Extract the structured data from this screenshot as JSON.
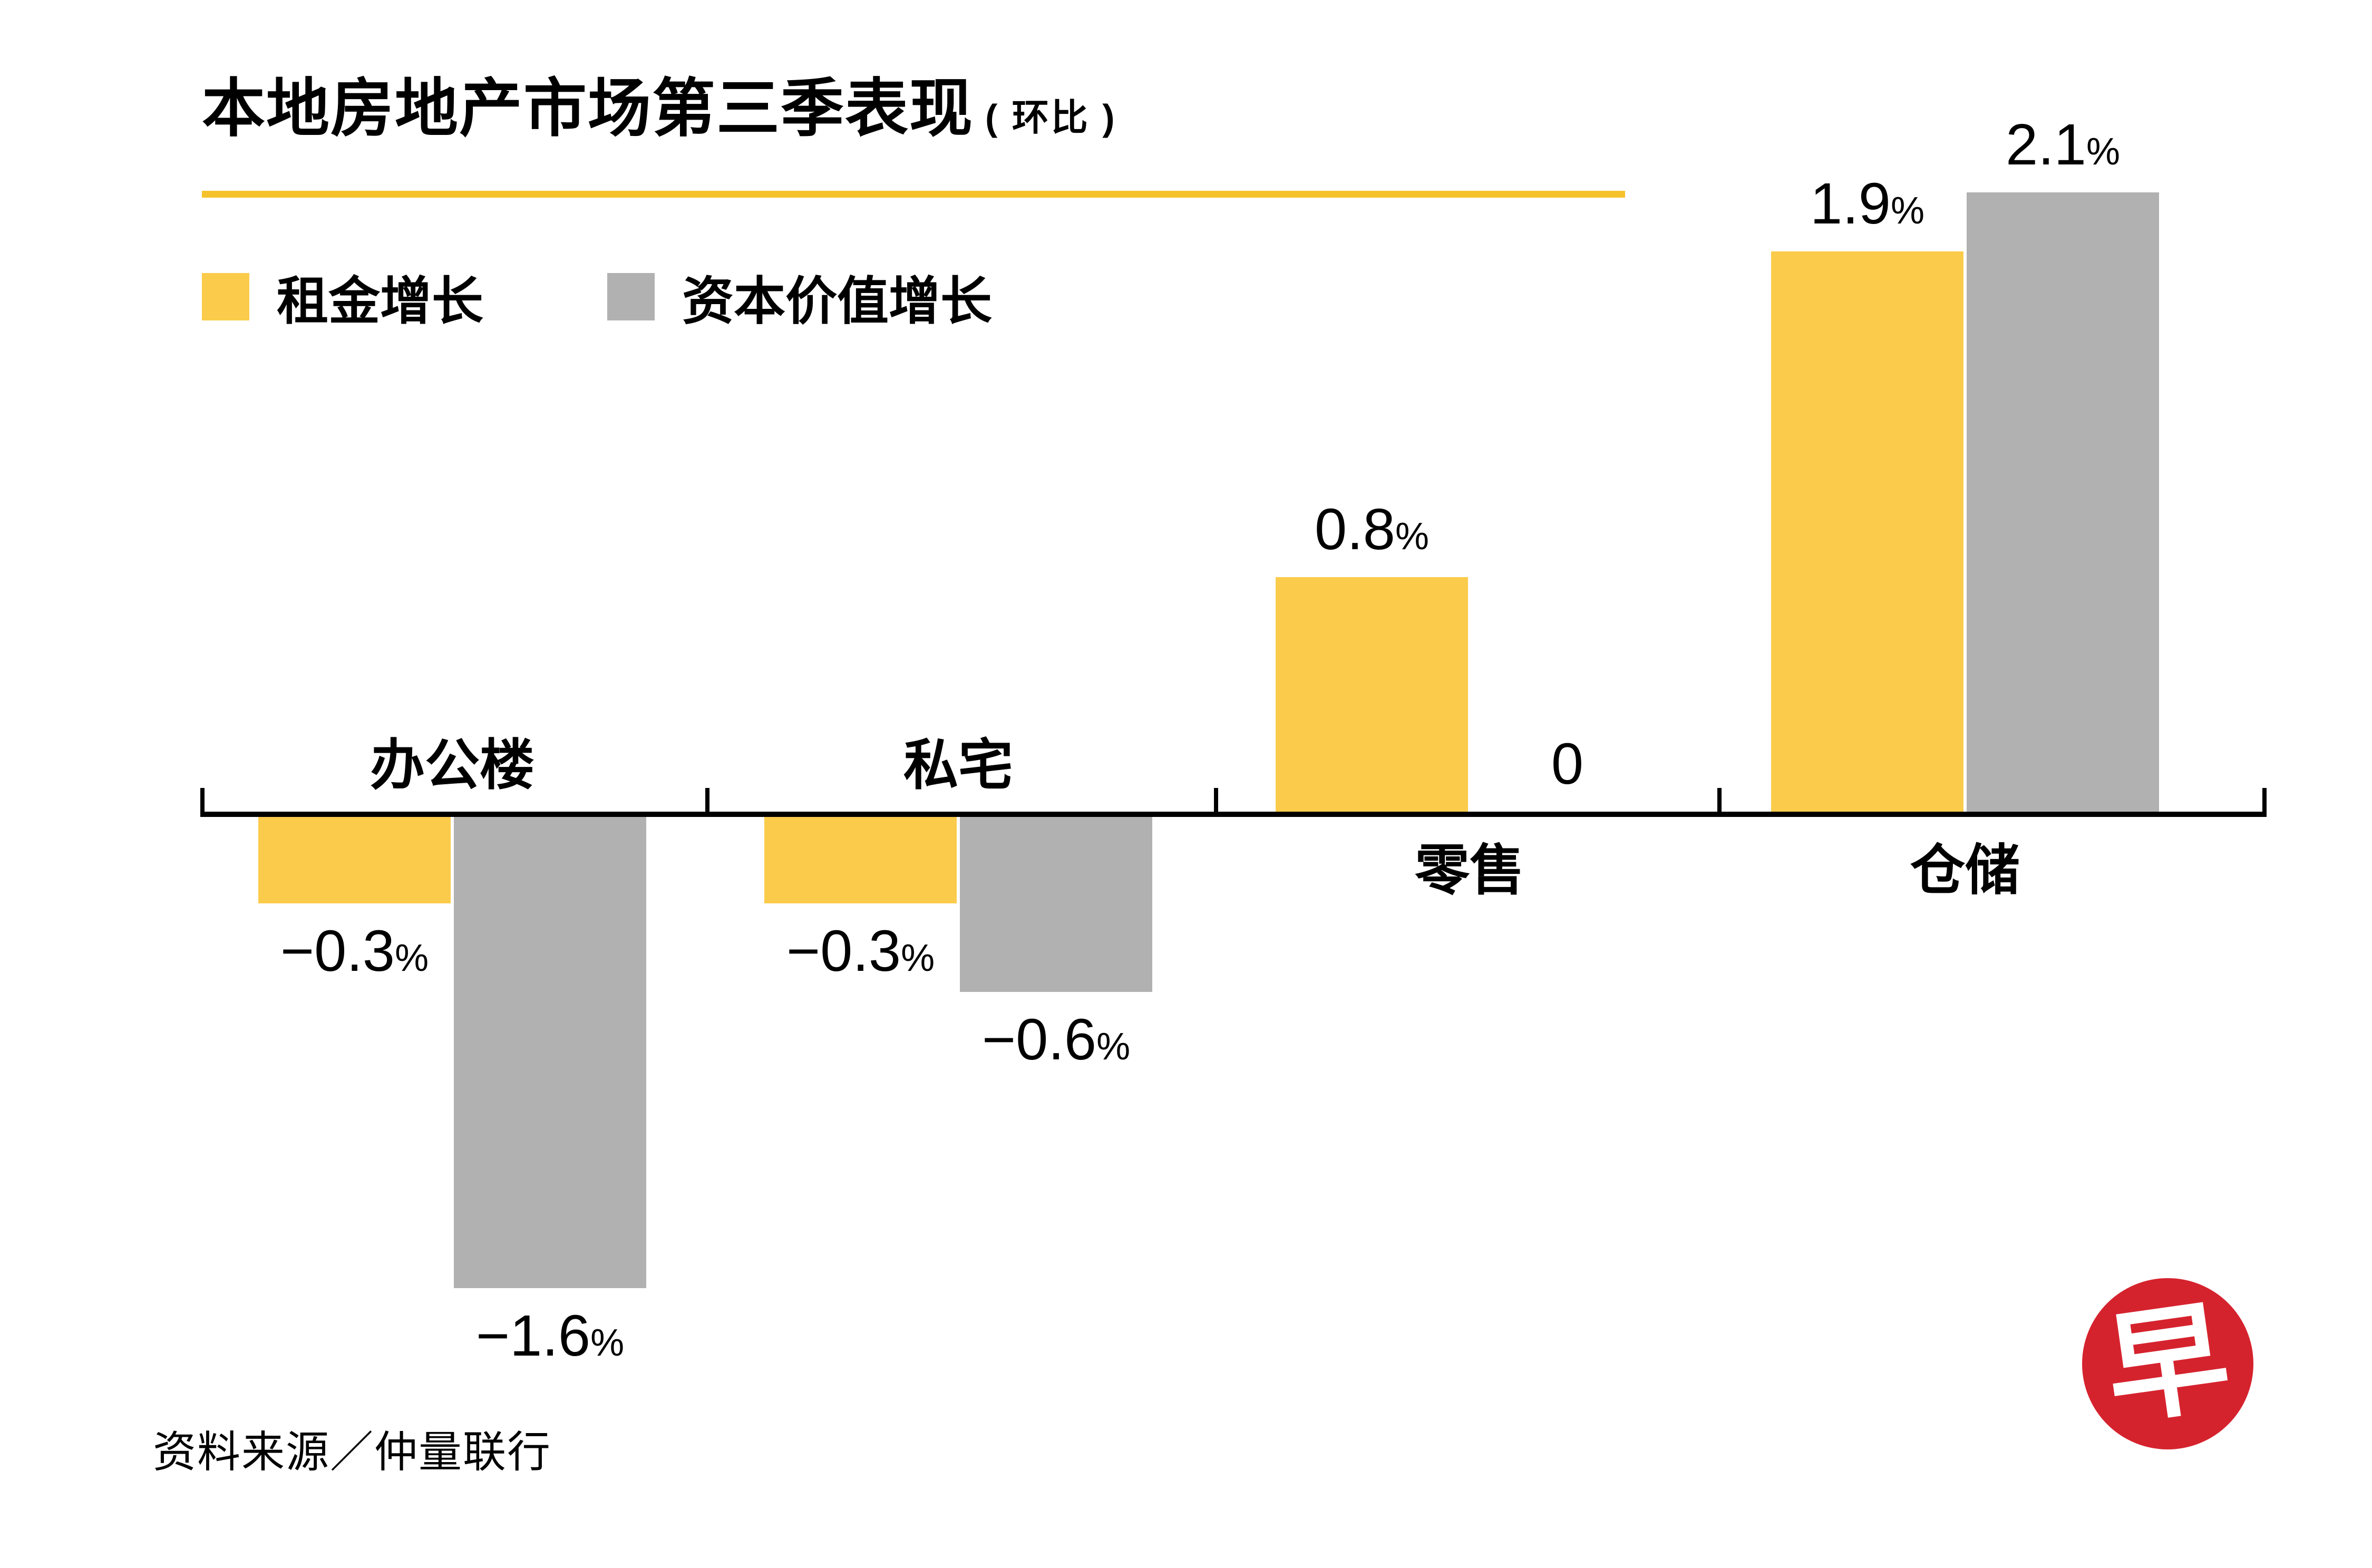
{
  "header": {
    "title": "本地房地产市场第三季表现",
    "title_suffix": "( 环比 )",
    "underline_color": "#F6C22B"
  },
  "legend": [
    {
      "label": "租金增长",
      "color": "#FBCB4B"
    },
    {
      "label": "资本价值增长",
      "color": "#B1B1B1"
    }
  ],
  "source": "资料来源／仲量联行",
  "logo": {
    "char": "早",
    "bg": "#D5232E"
  },
  "chart_data": {
    "type": "bar",
    "title": "本地房地产市场第三季表现（环比）",
    "categories": [
      "办公楼",
      "私宅",
      "零售",
      "仓储"
    ],
    "series": [
      {
        "name": "租金增长",
        "color": "#FBCB4B",
        "values": [
          -0.3,
          -0.3,
          0.8,
          1.9
        ]
      },
      {
        "name": "资本价值增长",
        "color": "#B1B1B1",
        "values": [
          -1.6,
          -0.6,
          0,
          2.1
        ]
      }
    ],
    "value_labels": [
      [
        "−0.3%",
        "−1.6%"
      ],
      [
        "−0.3%",
        "−0.6%"
      ],
      [
        "0.8%",
        "0"
      ],
      [
        "1.9%",
        "2.1%"
      ]
    ],
    "unit": "%",
    "ylim": [
      -1.6,
      2.1
    ],
    "grid": false,
    "legend_position": "top-left"
  }
}
